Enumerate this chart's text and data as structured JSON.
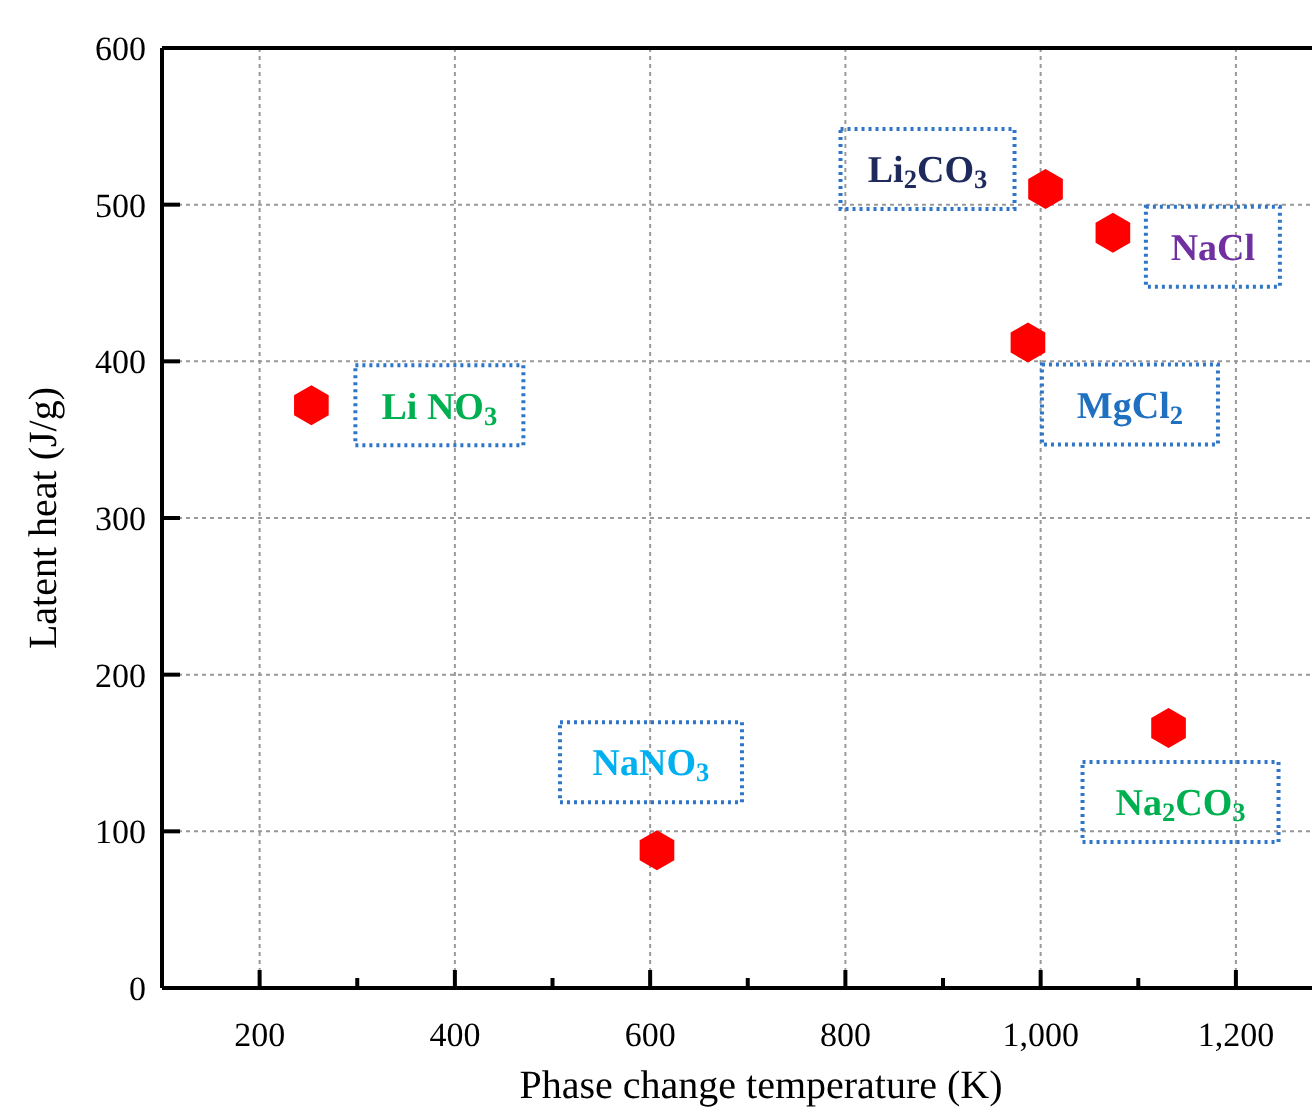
{
  "chart_data": {
    "type": "scatter",
    "xlabel": "Phase change temperature (K)",
    "ylabel": "Latent heat (J/g)",
    "x": [
      253,
      607,
      1005,
      1074,
      987,
      1131
    ],
    "series": [
      {
        "color": "#ff0000",
        "values": [
          372,
          88,
          510,
          482,
          412,
          166
        ]
      }
    ],
    "xlim": [
      100,
      1280
    ],
    "ylim": [
      0,
      600
    ],
    "xticks": [
      200,
      {
        "value": 300,
        "label": null
      },
      400,
      {
        "value": 500,
        "label": null
      },
      600,
      {
        "value": 700,
        "label": null
      },
      800,
      {
        "value": 900,
        "label": null
      },
      {
        "value": 1000,
        "label": "1,000"
      },
      {
        "value": 1100,
        "label": null
      },
      {
        "value": 1200,
        "label": "1,200"
      }
    ],
    "yticks": [
      0,
      100,
      200,
      300,
      400,
      500,
      600
    ],
    "grid": true,
    "annotations": [
      {
        "text": "Li NO$_{3}$",
        "x": 253,
        "y": 372
      },
      {
        "text": "NaNO$_{3}$",
        "x": 607,
        "y": 88
      },
      {
        "text": "Li$_{2}$CO$_{3}$",
        "x": 1005,
        "y": 510
      },
      {
        "text": "NaCl",
        "x": 1074,
        "y": 482
      },
      {
        "text": "MgCl$_{2}$",
        "x": 987,
        "y": 412
      },
      {
        "text": "Na$_{2}$CO$_{3}$",
        "x": 1131,
        "y": 166
      }
    ]
  }
}
